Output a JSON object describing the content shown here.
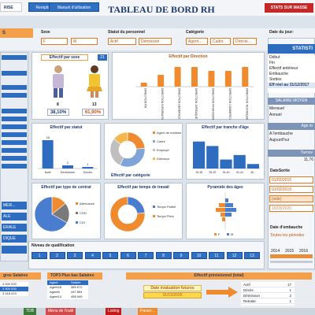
{
  "header": {
    "tab_left": "RISE",
    "tab_remplissage": "Remplissage",
    "tab_manuel": "Manuel d'utilisation",
    "title": "TABLEAU DE BORD RH",
    "stats_button": "STATS SUR MASSE"
  },
  "filters": {
    "left_btn": "S",
    "sexe_label": "Sexe",
    "sexe_options": [
      "F",
      "M"
    ],
    "statut_label": "Statut du personnel",
    "statut_options": [
      "Actif",
      "Démission"
    ],
    "categorie_label": "Catégorie",
    "categorie_options": [
      "Agent...",
      "Cadre",
      "Directe..."
    ],
    "date_label": "Date du jour:"
  },
  "sexe": {
    "title": "Effectif par sexe",
    "total": "21",
    "female_count": "8",
    "male_count": "13",
    "female_pct": "38,10%",
    "male_pct": "61,90%"
  },
  "direction_chart": {
    "title": "Effectif par Direction",
    "categories": [
      "DIRECTION RH",
      "DIRECTION INFORMATIQUE",
      "DIRECTION GENERALE",
      "DIRECTION JURIDIQUE",
      "DIRECTION FINANCIERE",
      "DIRECTION COMMERCIALE",
      "DIRECTION TECHNIQUE"
    ],
    "values": [
      1,
      3,
      5,
      5,
      4,
      4,
      5
    ]
  },
  "right_panel": {
    "title": "STATISTI",
    "rows": [
      "Début",
      "Fin",
      "Effectif antérieur",
      "Embauche",
      "Sorties"
    ],
    "eff_reel": "Eff réel au 31/12/2017",
    "salaire_title": "SALAIRE MOYEN",
    "salaire_rows": [
      "Mensuel",
      "Annuel"
    ],
    "age_title": "Age m",
    "age_rows": [
      "A l'embauche",
      "Aujourd'hui"
    ],
    "turnover_title": "Turnov",
    "turnover_value": "11,76",
    "date_sortie_label": "DateSortie",
    "date_sortie": [
      "01/02/2015",
      "01/02/2019",
      "(vide)",
      "15/03/2020"
    ],
    "date_embauche_label": "Date d'embauche",
    "toutes_periodes": "Toutes les périodes",
    "timeline_years": [
      "2014",
      "2015",
      "2016"
    ]
  },
  "left_panel": {
    "items": [
      "MER...",
      "ALE",
      "ERALE",
      "DIQUE"
    ]
  },
  "statut_chart": {
    "title": "Effectif par statut",
    "categories": [
      "Actif",
      "Démission",
      "Décès"
    ],
    "values": [
      18,
      2,
      1
    ],
    "labels": [
      "18",
      "2",
      "1"
    ]
  },
  "categorie_chart": {
    "title": "Effectif par catégorie",
    "legend": [
      "Agent de maîtrise",
      "Cadre",
      "Employé",
      "Directeur"
    ],
    "values": [
      5,
      7,
      6,
      3
    ],
    "colors": [
      "#f08a2e",
      "#7ea4d8",
      "#bfbfbf",
      "#f2b84b"
    ]
  },
  "age_chart": {
    "title": "Effectif par tranche d'âge",
    "categories": [
      "15-35",
      "35-39",
      "35-40",
      "40-44",
      "45..."
    ],
    "values": [
      6,
      5,
      2,
      3,
      1
    ]
  },
  "contrat_chart": {
    "title": "Effectif par type de contrat",
    "legend": [
      "Alternance",
      "CDD",
      "CDI"
    ],
    "values": [
      3,
      4,
      14
    ],
    "colors": [
      "#f08a2e",
      "#7a7a7a",
      "#4a7ccf"
    ]
  },
  "temps_chart": {
    "title": "Effectif par temps de travail",
    "legend": [
      "Temps Partiel",
      "Temps Plein"
    ],
    "values": [
      5,
      16
    ],
    "colors": [
      "#4a7ccf",
      "#f08a2e"
    ]
  },
  "pyramide_chart": {
    "title": "Pyramide des âges",
    "legend": [
      "F",
      "M"
    ]
  },
  "qualification": {
    "title": "Niveau de qualification",
    "levels": [
      "1",
      "2",
      "3",
      "4",
      "5",
      "6",
      "7",
      "8",
      "9",
      "10",
      "11",
      "12",
      "13"
    ]
  },
  "bottom": {
    "gros_salaires_title": "gros Salaires",
    "gros_salaires": [
      "4 000 000",
      "3 900 000",
      "3 518 023"
    ],
    "bas_salaires_title": "TOP3 Plus bas Salaires",
    "bas_salaires_cols": [
      "Agent",
      "Salaire"
    ],
    "bas_salaires": [
      [
        "Agent18",
        "389 672"
      ],
      [
        "Agent6",
        "447 854"
      ],
      [
        "Agent14",
        "458 949"
      ]
    ],
    "previsionnel_title": "Effectif prévisionnel (total)",
    "date_eval_label": "Date évaluation futures",
    "date_eval_value": "31/12/2025",
    "prev_rows": [
      "Actif",
      "Décès",
      "Démission",
      "Retraite"
    ],
    "prev_values": [
      "17",
      "1",
      "2",
      "1"
    ]
  },
  "sheet_tabs": [
    "TDB",
    "Menu de l'outil",
    "Listing",
    "Param..."
  ]
}
